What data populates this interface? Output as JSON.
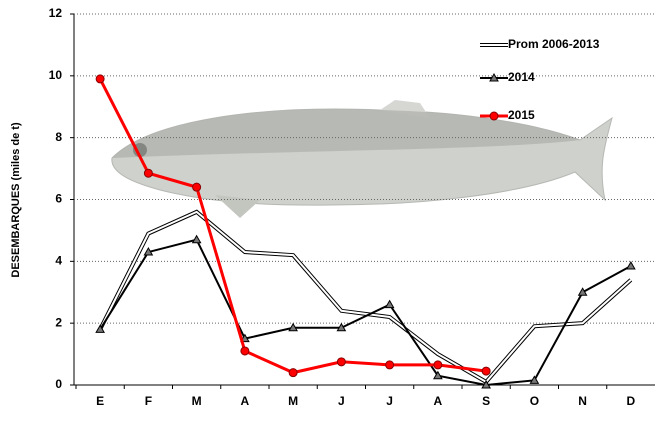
{
  "chart_data": {
    "type": "line",
    "y_label": "DESEMBARQUES   (miles de t)",
    "categories": [
      "E",
      "F",
      "M",
      "A",
      "M",
      "J",
      "J",
      "A",
      "S",
      "O",
      "N",
      "D"
    ],
    "series": [
      {
        "name": "Prom 2006-2013",
        "color": "#000000",
        "style": "double",
        "values": [
          1.8,
          4.9,
          5.6,
          4.3,
          4.2,
          2.4,
          2.2,
          1.0,
          0.1,
          1.9,
          2.0,
          3.4
        ]
      },
      {
        "name": "2014",
        "color": "#000000",
        "marker": "triangle",
        "values": [
          1.8,
          4.3,
          4.7,
          1.5,
          1.85,
          1.85,
          2.6,
          0.3,
          0.0,
          0.15,
          3.0,
          3.85
        ]
      },
      {
        "name": "2015",
        "color": "#ff0000",
        "marker": "circle",
        "values": [
          9.9,
          6.85,
          6.4,
          1.1,
          0.4,
          0.75,
          0.65,
          0.65,
          0.45,
          null,
          null,
          null
        ]
      }
    ],
    "ylim": [
      0,
      12
    ],
    "yticks": [
      0,
      2,
      4,
      6,
      8,
      10,
      12
    ],
    "grid": true
  }
}
